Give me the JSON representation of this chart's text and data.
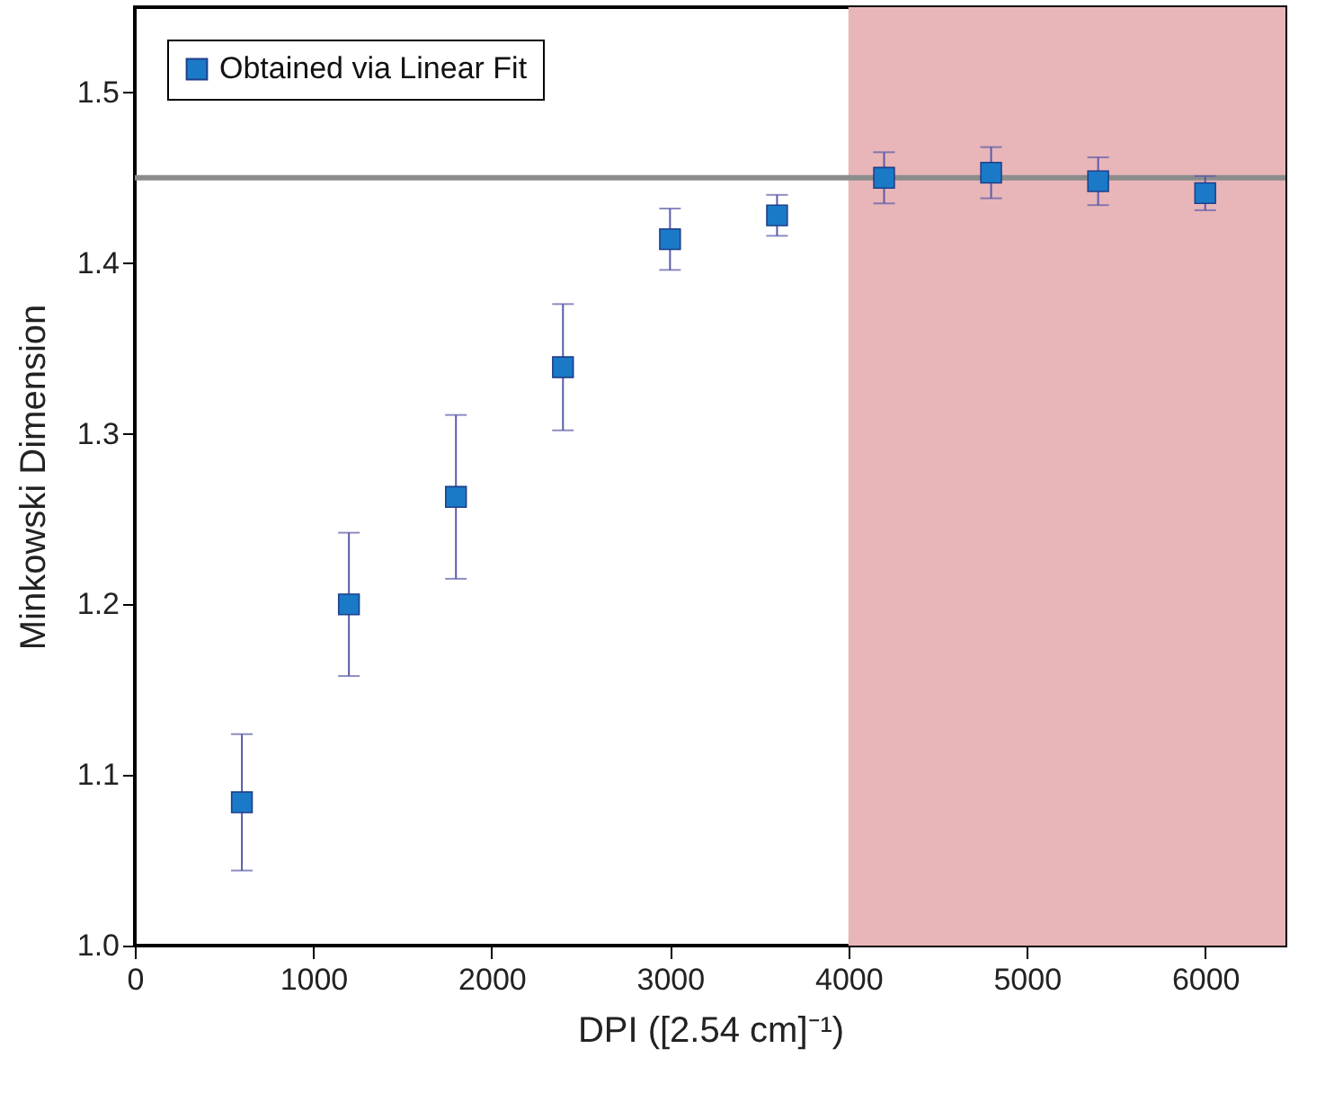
{
  "chart_data": {
    "type": "scatter",
    "xlabel": "DPI ([2.54 cm]⁻¹)",
    "ylabel": "Minkowski Dimension",
    "x": [
      600,
      1200,
      1800,
      2400,
      3000,
      3600,
      4200,
      4800,
      5400,
      6000
    ],
    "series": [
      {
        "name": "Obtained via Linear Fit",
        "color": "#1a7ac8",
        "values": [
          1.084,
          1.2,
          1.263,
          1.339,
          1.414,
          1.428,
          1.45,
          1.453,
          1.448,
          1.441
        ],
        "errors": [
          0.04,
          0.042,
          0.048,
          0.037,
          0.018,
          0.012,
          0.015,
          0.015,
          0.014,
          0.01
        ]
      }
    ],
    "xlim": [
      0,
      6450
    ],
    "xticks": [
      0,
      1000,
      2000,
      3000,
      4000,
      5000,
      6000
    ],
    "ylim": [
      1.0,
      1.55
    ],
    "yticks": [
      {
        "value": 1,
        "label": "1.0"
      },
      {
        "value": 1.1,
        "label": "1.1"
      },
      {
        "value": 1.2,
        "label": "1.2"
      },
      {
        "value": 1.3,
        "label": "1.3"
      },
      {
        "value": 1.4,
        "label": "1.4"
      },
      {
        "value": 1.5,
        "label": "1.5"
      }
    ],
    "ref_lines": [
      {
        "axis": "y",
        "value": 1.45,
        "color": "#8c8c8c"
      }
    ],
    "bands": [
      {
        "axis": "x",
        "from": 4000,
        "to": 6450,
        "color": "#e8b6b8"
      }
    ],
    "marker": "square",
    "grid": false,
    "legend": "top left"
  }
}
